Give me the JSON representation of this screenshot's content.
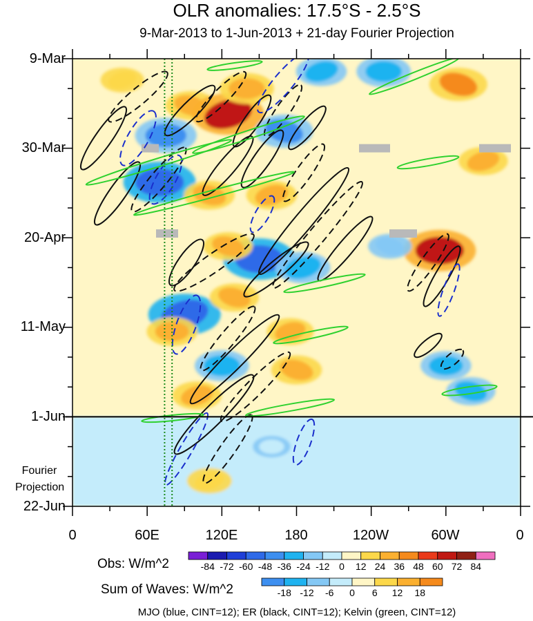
{
  "title": "OLR anomalies: 17.5°S - 2.5°S",
  "subtitle": "9-Mar-2013 to 1-Jun-2013 + 21-day Fourier Projection",
  "y_ticks": [
    "9-Mar",
    "30-Mar",
    "20-Apr",
    "11-May",
    "1-Jun",
    "22-Jun"
  ],
  "x_ticks": [
    "0",
    "60E",
    "120E",
    "180",
    "120W",
    "60W",
    "0"
  ],
  "projection_label": "Fourier Projection",
  "colorbar_obs": {
    "title": "Obs: W/m^2",
    "labels": [
      "-84",
      "-72",
      "-60",
      "-48",
      "-36",
      "-24",
      "-12",
      "0",
      "12",
      "24",
      "36",
      "48",
      "60",
      "72",
      "84"
    ],
    "colors": [
      "#7a1fd6",
      "#1b1bb0",
      "#1f3fd8",
      "#2f6ae8",
      "#3d8ff0",
      "#1fb3f0",
      "#84c8f5",
      "#c4ecfb",
      "#fff6c6",
      "#fcd84a",
      "#fbb030",
      "#f58a1c",
      "#ea3a1a",
      "#c01812",
      "#902014",
      "#f06fbf"
    ]
  },
  "colorbar_waves": {
    "title": "Sum of Waves: W/m^2",
    "labels": [
      "-18",
      "-12",
      "-6",
      "0",
      "6",
      "12",
      "18"
    ],
    "colors": [
      "#3d8ff0",
      "#1fb3f0",
      "#84c8f5",
      "#c4ecfb",
      "#fff6c6",
      "#fcd84a",
      "#fbb030",
      "#f58a1c"
    ]
  },
  "footer": "MJO (blue, CINT=12); ER (black, CINT=12); Kelvin (green, CINT=12)",
  "chart_data": {
    "type": "heatmap",
    "title": "OLR anomalies: 17.5°S - 2.5°S",
    "subtitle": "9-Mar-2013 to 1-Jun-2013 + 21-day Fourier Projection",
    "x_axis": {
      "range_deg_east": [
        0,
        360
      ],
      "ticks_deg_east": [
        0,
        60,
        120,
        180,
        240,
        300,
        360
      ],
      "tick_labels": [
        "0",
        "60E",
        "120E",
        "180",
        "120W",
        "60W",
        "0"
      ]
    },
    "y_axis": {
      "range": [
        "9-Mar-2013",
        "22-Jun-2013"
      ],
      "ticks": [
        "9-Mar",
        "30-Mar",
        "20-Apr",
        "11-May",
        "1-Jun",
        "22-Jun"
      ],
      "observed_end": "1-Jun-2013"
    },
    "obs_levels": [
      -84,
      -72,
      -60,
      -48,
      -36,
      -24,
      -12,
      0,
      12,
      24,
      36,
      48,
      60,
      72,
      84
    ],
    "wave_levels": [
      -18,
      -12,
      -6,
      0,
      6,
      12,
      18
    ],
    "anomaly_regions": [
      {
        "lon": 40,
        "date": "2013-03-14",
        "value": 20
      },
      {
        "lon": 75,
        "date": "2013-03-27",
        "value": -45
      },
      {
        "lon": 95,
        "date": "2013-03-20",
        "value": 30
      },
      {
        "lon": 125,
        "date": "2013-03-22",
        "value": 60
      },
      {
        "lon": 140,
        "date": "2013-03-16",
        "value": 35
      },
      {
        "lon": 170,
        "date": "2013-03-26",
        "value": -40
      },
      {
        "lon": 200,
        "date": "2013-03-12",
        "value": -30
      },
      {
        "lon": 250,
        "date": "2013-03-12",
        "value": -35
      },
      {
        "lon": 310,
        "date": "2013-03-15",
        "value": 40
      },
      {
        "lon": 330,
        "date": "2013-04-02",
        "value": 28
      },
      {
        "lon": 70,
        "date": "2013-04-07",
        "value": -60
      },
      {
        "lon": 110,
        "date": "2013-04-10",
        "value": 30
      },
      {
        "lon": 160,
        "date": "2013-04-10",
        "value": 30
      },
      {
        "lon": 150,
        "date": "2013-04-25",
        "value": -60
      },
      {
        "lon": 125,
        "date": "2013-04-22",
        "value": 28
      },
      {
        "lon": 185,
        "date": "2013-04-27",
        "value": -36
      },
      {
        "lon": 295,
        "date": "2013-04-23",
        "value": 60
      },
      {
        "lon": 255,
        "date": "2013-04-22",
        "value": -20
      },
      {
        "lon": 90,
        "date": "2013-05-08",
        "value": -60
      },
      {
        "lon": 80,
        "date": "2013-05-12",
        "value": 30
      },
      {
        "lon": 130,
        "date": "2013-05-04",
        "value": 28
      },
      {
        "lon": 175,
        "date": "2013-05-12",
        "value": 25
      },
      {
        "lon": 120,
        "date": "2013-05-20",
        "value": -35
      },
      {
        "lon": 180,
        "date": "2013-05-21",
        "value": 30
      },
      {
        "lon": 100,
        "date": "2013-05-27",
        "value": 28
      },
      {
        "lon": 300,
        "date": "2013-05-20",
        "value": -30
      },
      {
        "lon": 320,
        "date": "2013-05-26",
        "value": -28
      },
      {
        "lon": 110,
        "date": "2013-06-16",
        "value": 22
      },
      {
        "lon": 160,
        "date": "2013-06-08",
        "value": -12
      }
    ],
    "waves": {
      "mjo": {
        "color": "blue",
        "cint": 12
      },
      "er": {
        "color": "black",
        "cint": 12
      },
      "kelvin": {
        "color": "green",
        "cint": 12
      }
    },
    "missing_data_days": [
      "2013-03-30",
      "2013-04-19"
    ],
    "dotted_reference_lons": [
      74,
      80
    ]
  }
}
